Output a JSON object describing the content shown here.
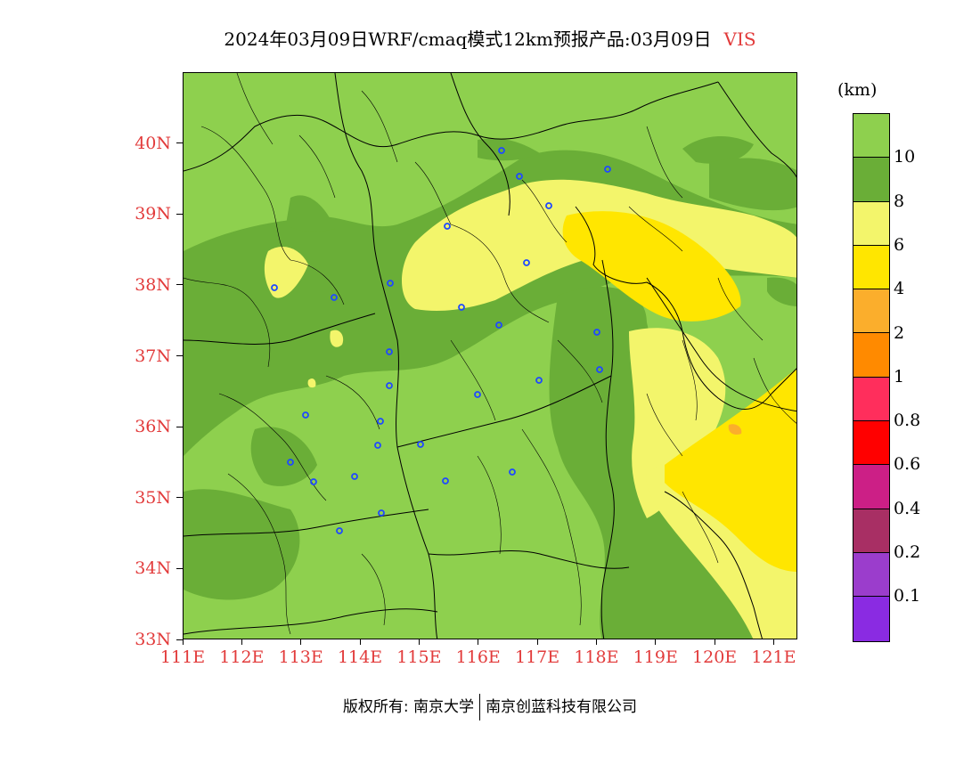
{
  "title": {
    "main": "2024年03月09日WRF/cmaq模式12km预报产品:03月09日",
    "variable": "VIS"
  },
  "map": {
    "lat_labels": [
      "40N",
      "39N",
      "38N",
      "37N",
      "36N",
      "35N",
      "34N",
      "33N"
    ],
    "lon_labels": [
      "111E",
      "112E",
      "113E",
      "114E",
      "115E",
      "116E",
      "117E",
      "118E",
      "119E",
      "120E",
      "121E"
    ],
    "lat_range": [
      33,
      41
    ],
    "lon_range": [
      111,
      121.4
    ]
  },
  "legend": {
    "unit": "(km)",
    "labels": [
      "10",
      "8",
      "6",
      "4",
      "2",
      "1",
      "0.8",
      "0.6",
      "0.4",
      "0.2",
      "0.1"
    ],
    "colors": [
      "#8ed04e",
      "#6aae37",
      "#f3f56b",
      "#ffe600",
      "#fbae2c",
      "#ff8a00",
      "#ff2e5c",
      "#ff0000",
      "#cc1f86",
      "#a82f64",
      "#9b3dcc",
      "#8a2be2"
    ]
  },
  "footer": {
    "left": "版权所有: 南京大学",
    "right": "南京创蓝科技有限公司"
  }
}
